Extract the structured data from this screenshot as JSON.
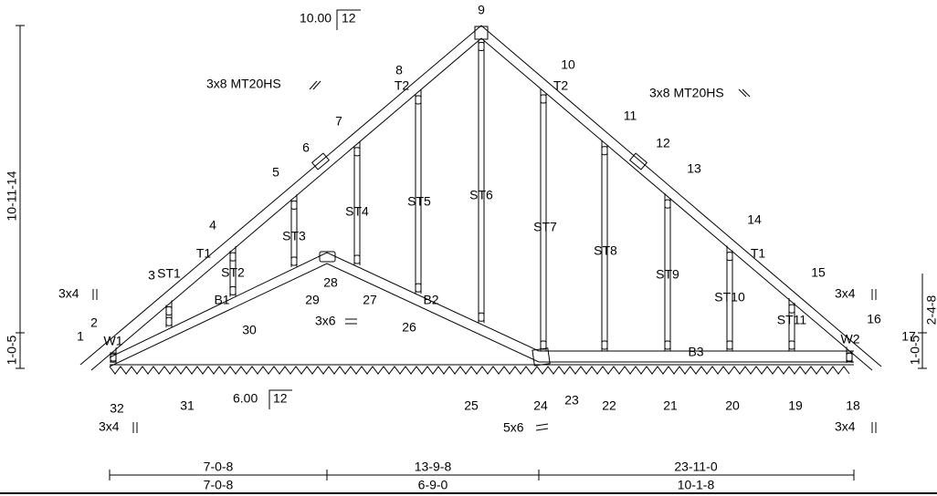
{
  "slopes": {
    "top": {
      "pitch": "10.00",
      "base": "12"
    },
    "bottom": {
      "pitch": "6.00",
      "base": "12"
    }
  },
  "joints": [
    "1",
    "2",
    "3",
    "4",
    "5",
    "6",
    "7",
    "8",
    "9",
    "10",
    "11",
    "12",
    "13",
    "14",
    "15",
    "16",
    "17",
    "18",
    "19",
    "20",
    "21",
    "22",
    "23",
    "24",
    "25",
    "26",
    "27",
    "28",
    "29",
    "30",
    "31",
    "32"
  ],
  "members": [
    "T1",
    "T2",
    "T2",
    "T1",
    "ST1",
    "ST2",
    "ST3",
    "ST4",
    "ST5",
    "ST6",
    "ST7",
    "ST8",
    "ST9",
    "ST10",
    "ST11",
    "B1",
    "B2",
    "B3",
    "W1",
    "W2"
  ],
  "plates": [
    "3x8 MT20HS",
    "3x8 MT20HS",
    "3x4",
    "3x4",
    "3x4",
    "3x4",
    "3x6",
    "5x6"
  ],
  "dimensions": {
    "height": "10-11-14",
    "left_heel": "1-0-5",
    "right_heel": "1-0-5",
    "right_partial": "2-4-8",
    "cumulative": [
      "7-0-8",
      "13-9-8",
      "23-11-0"
    ],
    "segments": [
      "7-0-8",
      "6-9-0",
      "10-1-8"
    ]
  }
}
